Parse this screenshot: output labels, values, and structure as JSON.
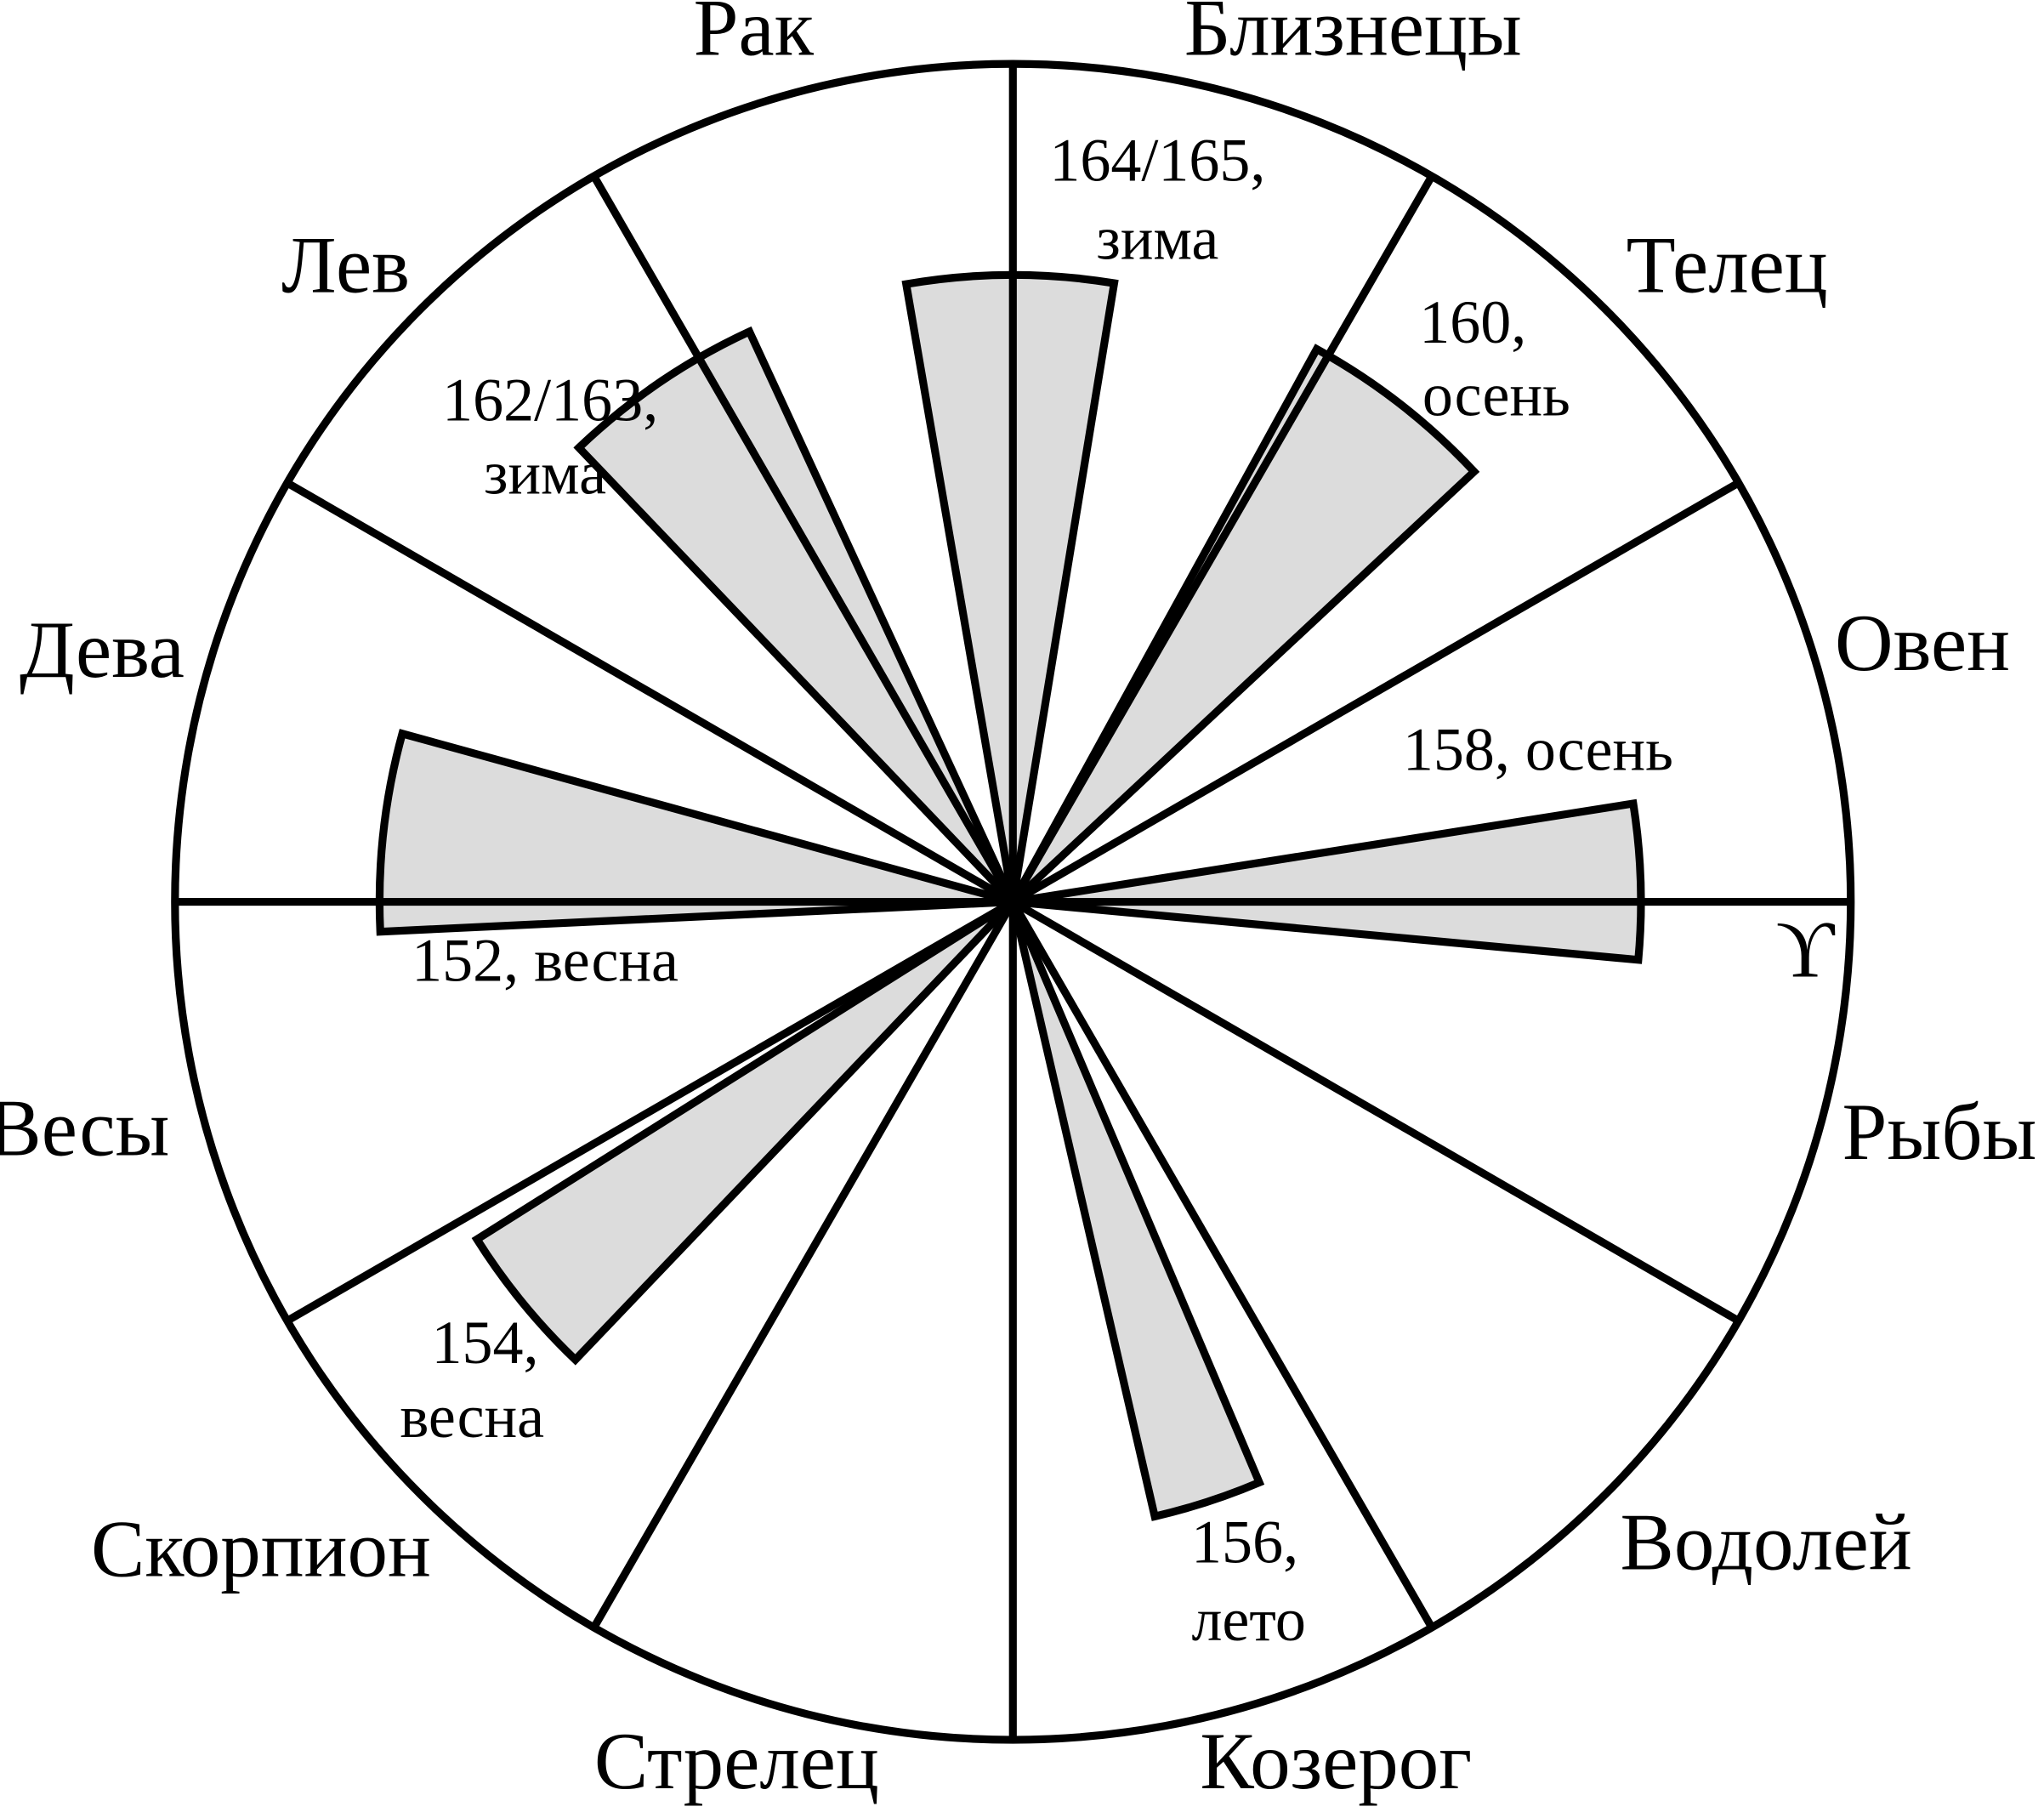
{
  "signs": [
    "Рак",
    "Близнецы",
    "Телец",
    "Овен",
    "ϒ",
    "Рыбы",
    "Водолей",
    "Козерог",
    "Стрелец",
    "Скорпион",
    "Весы",
    "Дева",
    "Лев"
  ],
  "notes": [
    {
      "lines": [
        "164/165,",
        "зима"
      ]
    },
    {
      "lines": [
        "160,",
        "осень"
      ]
    },
    {
      "lines": [
        "158, осень"
      ]
    },
    {
      "lines": [
        "156,",
        "лето"
      ]
    },
    {
      "lines": [
        "154,",
        "весна"
      ]
    },
    {
      "lines": [
        "152, весна"
      ]
    },
    {
      "lines": [
        "162/163,",
        "зима"
      ]
    }
  ]
}
